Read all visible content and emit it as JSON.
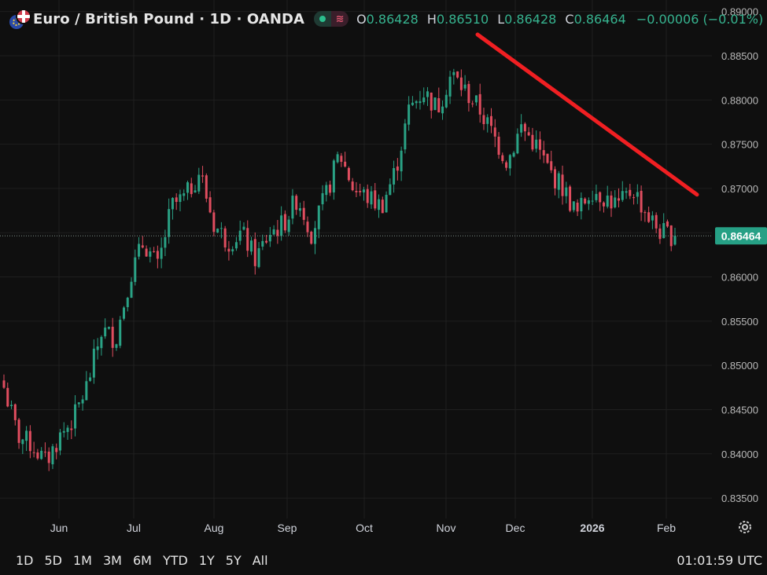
{
  "header": {
    "symbol": "Euro / British Pound · 1D · OANDA",
    "open_label": "O",
    "open": "0.86428",
    "high_label": "H",
    "high": "0.86510",
    "low_label": "L",
    "low": "0.86428",
    "close_label": "C",
    "close": "0.86464",
    "change": "−0.00006 (−0.01%)",
    "flag_icon": "eur-gbp-flags-icon",
    "pill_icon_1": "dot-icon",
    "pill_icon_2": "≋"
  },
  "price_label": "0.86464",
  "time_ranges": [
    "1D",
    "5D",
    "1M",
    "3M",
    "6M",
    "YTD",
    "1Y",
    "5Y",
    "All"
  ],
  "clock": "01:01:59 UTC",
  "colors": {
    "background": "#0f0f0f",
    "up": "#2aa285",
    "down": "#e04d5f",
    "trendline": "#f01f22",
    "label_bg": "#26a085",
    "grid": "#1f1f1f"
  },
  "chart_data": {
    "type": "candlestick",
    "y_ticks": [
      "0.89000",
      "0.88500",
      "0.88000",
      "0.87500",
      "0.87000",
      "0.86500",
      "0.86000",
      "0.85500",
      "0.85000",
      "0.84500",
      "0.84000",
      "0.83500"
    ],
    "x_ticks": [
      "Jun",
      "Jul",
      "Aug",
      "Sep",
      "Oct",
      "Nov",
      "Dec",
      "2026",
      "Feb"
    ],
    "ylim": [
      0.8327,
      0.8913
    ],
    "last_price": 0.86464,
    "grid": true,
    "trendline": {
      "from": {
        "date": "mid-Nov",
        "value": 0.8874
      },
      "to": {
        "date": "mid-Feb",
        "value": 0.8693
      }
    },
    "weekly_path": [
      0.8475,
      0.842,
      0.841,
      0.839,
      0.842,
      0.844,
      0.848,
      0.854,
      0.853,
      0.86,
      0.864,
      0.861,
      0.868,
      0.869,
      0.872,
      0.866,
      0.864,
      0.865,
      0.862,
      0.865,
      0.866,
      0.869,
      0.865,
      0.869,
      0.874,
      0.87,
      0.869,
      0.868,
      0.872,
      0.879,
      0.881,
      0.879,
      0.883,
      0.881,
      0.879,
      0.876,
      0.873,
      0.877,
      0.875,
      0.872,
      0.87,
      0.867,
      0.87,
      0.869,
      0.868,
      0.87,
      0.867,
      0.865,
      0.86464
    ]
  }
}
